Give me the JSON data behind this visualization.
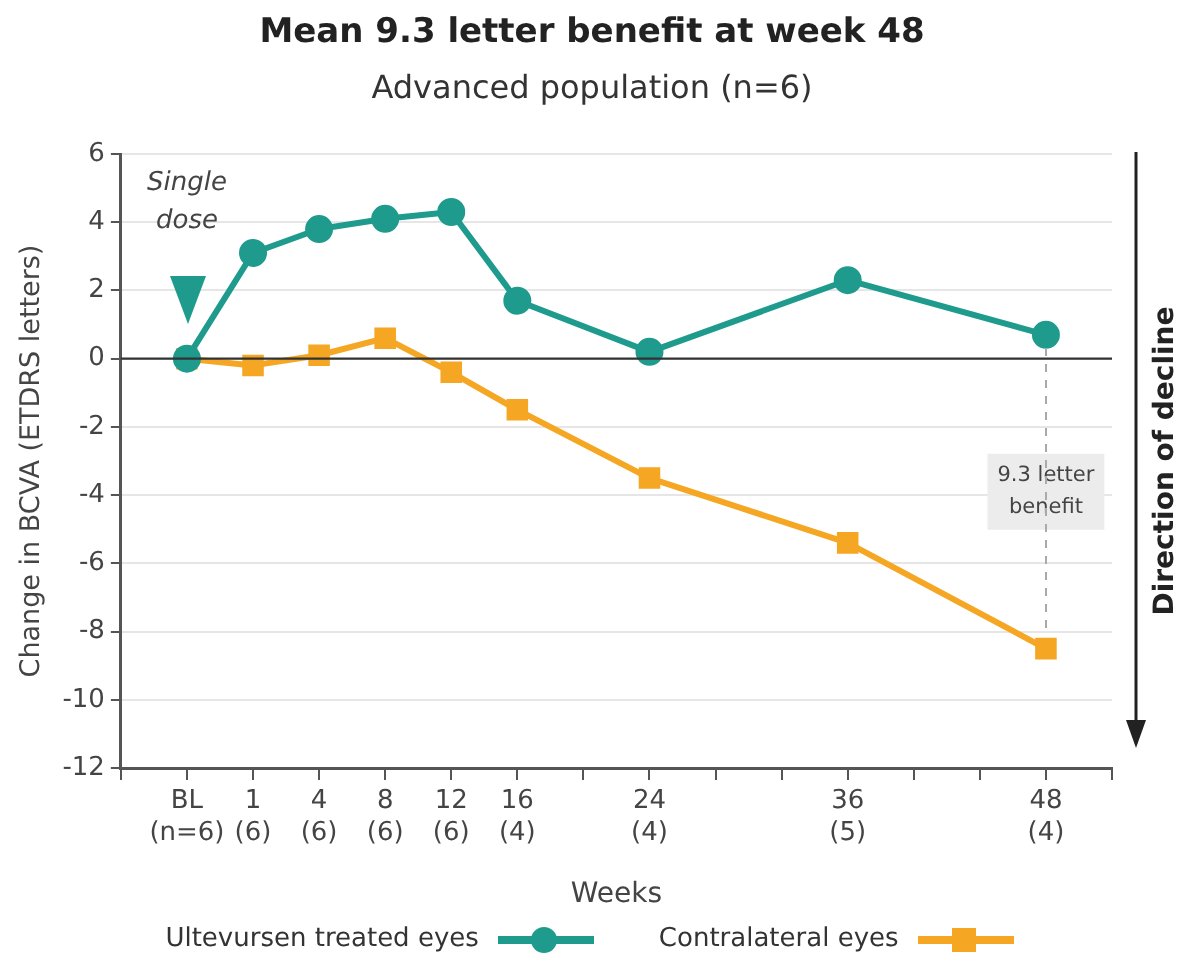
{
  "chart_data": {
    "type": "line",
    "title": "Mean 9.3 letter benefit at week 48",
    "subtitle": "Advanced population (n=6)",
    "xlabel": "Weeks",
    "ylabel": "Change in BCVA (ETDRS letters)",
    "categories": [
      null,
      "BL\n(n=6)",
      "1\n(6)",
      "4\n(6)",
      "8\n(6)",
      "12\n(6)",
      "16\n(4)",
      null,
      "24\n(4)",
      null,
      null,
      "36\n(5)",
      null,
      null,
      "48\n(4)",
      null
    ],
    "series": [
      {
        "name": "Ultevursen treated eyes",
        "color": "#1f9b8e",
        "marker": "circle",
        "values": [
          null,
          0,
          3.1,
          3.8,
          4.1,
          4.3,
          1.7,
          null,
          0.2,
          null,
          null,
          2.3,
          null,
          null,
          0.7,
          null
        ]
      },
      {
        "name": "Contralateral eyes",
        "color": "#f5a623",
        "marker": "square",
        "values": [
          null,
          0,
          -0.2,
          0.1,
          0.6,
          -0.4,
          -1.5,
          null,
          -3.5,
          null,
          null,
          -5.4,
          null,
          null,
          -8.5,
          null
        ]
      }
    ],
    "ylim": [
      -12,
      6
    ],
    "yticks": [
      -12,
      -10,
      -8,
      -6,
      -4,
      -2,
      0,
      2,
      4,
      6
    ],
    "grid": "y",
    "legend": "bottom",
    "ref_lines": [
      {
        "axis": "y",
        "value": 0,
        "color": "#333333"
      }
    ],
    "annotations": [
      "Single dose",
      "9.3 letter benefit",
      "Direction of decline"
    ]
  }
}
